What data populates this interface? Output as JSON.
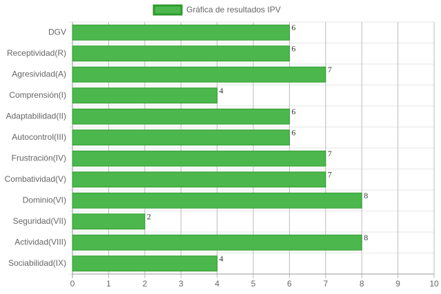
{
  "chart_data": {
    "type": "bar",
    "orientation": "horizontal",
    "legend": "Gráfica de resultados IPV",
    "legend_position": "top",
    "categories": [
      "DGV",
      "Receptividad(R)",
      "Agresividad(A)",
      "Comprensión(I)",
      "Adaptabilidad(II)",
      "Autocontrol(III)",
      "Frustración(IV)",
      "Combatividad(V)",
      "Dominio(VI)",
      "Seguridad(VII)",
      "Actividad(VIII)",
      "Sociabilidad(IX)"
    ],
    "values": [
      6,
      6,
      7,
      4,
      6,
      6,
      7,
      7,
      8,
      2,
      8,
      4
    ],
    "color": "#4cb74c",
    "border_color": "#2e9a2e",
    "xlim": [
      0,
      10
    ],
    "xticks": [
      0,
      1,
      2,
      3,
      4,
      5,
      6,
      7,
      8,
      9,
      10
    ],
    "grid": true
  }
}
